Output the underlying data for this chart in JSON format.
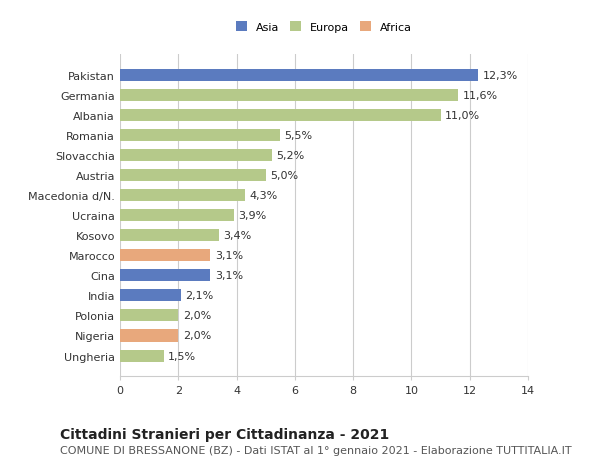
{
  "categories": [
    "Pakistan",
    "Germania",
    "Albania",
    "Romania",
    "Slovacchia",
    "Austria",
    "Macedonia d/N.",
    "Ucraina",
    "Kosovo",
    "Marocco",
    "Cina",
    "India",
    "Polonia",
    "Nigeria",
    "Ungheria"
  ],
  "values": [
    12.3,
    11.6,
    11.0,
    5.5,
    5.2,
    5.0,
    4.3,
    3.9,
    3.4,
    3.1,
    3.1,
    2.1,
    2.0,
    2.0,
    1.5
  ],
  "labels": [
    "12,3%",
    "11,6%",
    "11,0%",
    "5,5%",
    "5,2%",
    "5,0%",
    "4,3%",
    "3,9%",
    "3,4%",
    "3,1%",
    "3,1%",
    "2,1%",
    "2,0%",
    "2,0%",
    "1,5%"
  ],
  "continents": [
    "Asia",
    "Europa",
    "Europa",
    "Europa",
    "Europa",
    "Europa",
    "Europa",
    "Europa",
    "Europa",
    "Africa",
    "Asia",
    "Asia",
    "Europa",
    "Africa",
    "Europa"
  ],
  "colors": {
    "Asia": "#5b7bbf",
    "Europa": "#b5c98a",
    "Africa": "#e8a87c"
  },
  "legend_colors": {
    "Asia": "#5b7bbf",
    "Europa": "#b5c98a",
    "Africa": "#e8a87c"
  },
  "xlim": [
    0,
    14
  ],
  "xticks": [
    0,
    2,
    4,
    6,
    8,
    10,
    12,
    14
  ],
  "title": "Cittadini Stranieri per Cittadinanza - 2021",
  "subtitle": "COMUNE DI BRESSANONE (BZ) - Dati ISTAT al 1° gennaio 2021 - Elaborazione TUTTITALIA.IT",
  "background_color": "#ffffff",
  "bar_height": 0.6,
  "grid_color": "#cccccc",
  "title_fontsize": 10,
  "subtitle_fontsize": 8,
  "label_fontsize": 8,
  "tick_fontsize": 8
}
